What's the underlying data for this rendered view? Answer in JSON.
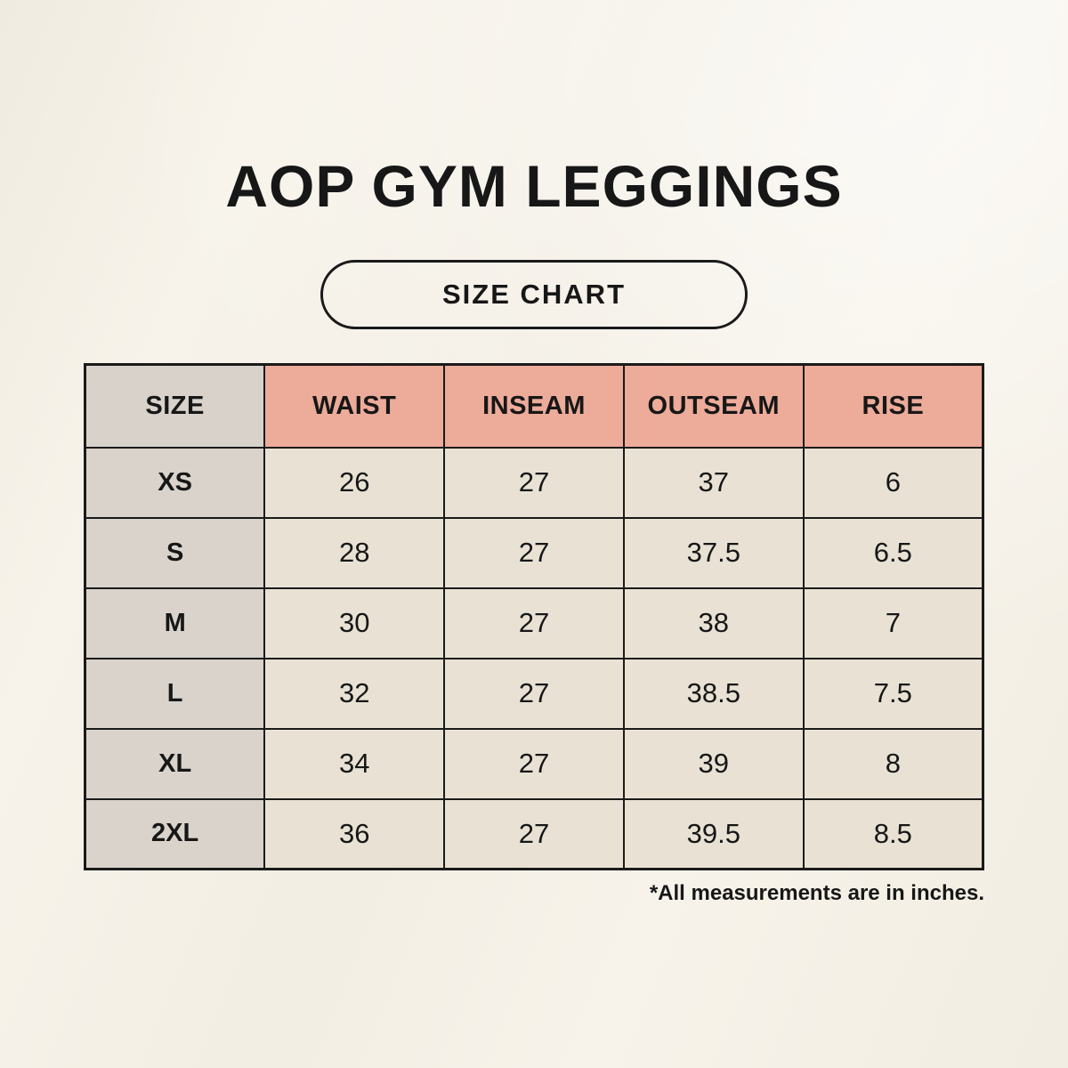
{
  "page": {
    "title": "AOP GYM LEGGINGS",
    "badge_label": "SIZE CHART",
    "footnote": "*All measurements are in inches."
  },
  "colors": {
    "background": "#f7f3ea",
    "header_size_bg": "#d8d2ca",
    "header_measure_bg": "#edab9a",
    "body_size_bg": "#d9d3cb",
    "body_cell_bg": "#e9e2d4",
    "border": "#1a1a1a",
    "text": "#171717"
  },
  "chart_data": {
    "type": "table",
    "title": "AOP GYM LEGGINGS",
    "subtitle": "SIZE CHART",
    "columns": [
      "SIZE",
      "WAIST",
      "INSEAM",
      "OUTSEAM",
      "RISE"
    ],
    "rows": [
      [
        "XS",
        26,
        27,
        37,
        6
      ],
      [
        "S",
        28,
        27,
        37.5,
        6.5
      ],
      [
        "M",
        30,
        27,
        38,
        7
      ],
      [
        "L",
        32,
        27,
        38.5,
        7.5
      ],
      [
        "XL",
        34,
        27,
        39,
        8
      ],
      [
        "2XL",
        36,
        27,
        39.5,
        8.5
      ]
    ],
    "units": "inches",
    "footnote": "*All measurements are in inches.",
    "layout": "header row highlighted salmon except SIZE column (gray); grid borders on"
  }
}
